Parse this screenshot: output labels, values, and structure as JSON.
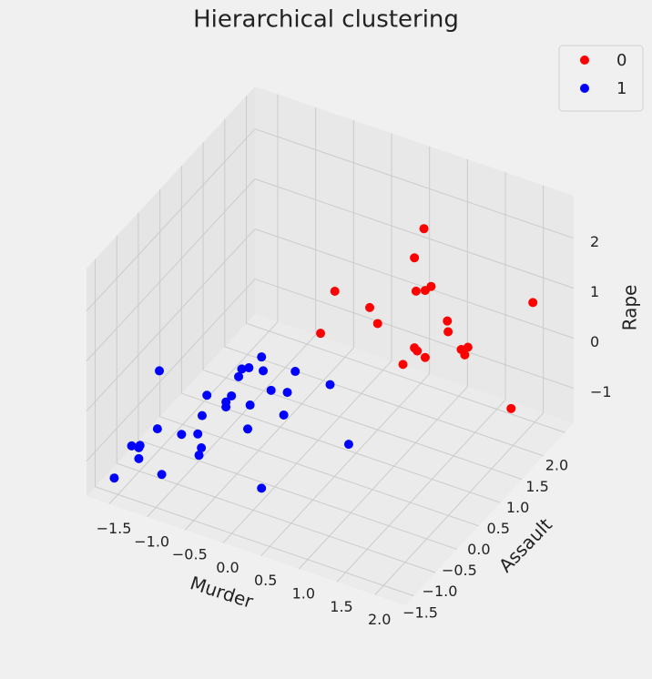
{
  "chart_data": {
    "type": "scatter3d",
    "title": "Hierarchical clustering",
    "xlabel": "Murder",
    "ylabel": "Assault",
    "zlabel": "Rape",
    "xlim": [
      -1.8,
      2.4
    ],
    "ylim": [
      -1.7,
      2.2
    ],
    "zlim": [
      -1.7,
      2.85
    ],
    "xticks": [
      {
        "value": -1.5,
        "label": "−1.5"
      },
      {
        "value": -1.0,
        "label": "−1.0"
      },
      {
        "value": -0.5,
        "label": "−0.5"
      },
      {
        "value": 0.0,
        "label": "0.0"
      },
      {
        "value": 0.5,
        "label": "0.5"
      },
      {
        "value": 1.0,
        "label": "1.0"
      },
      {
        "value": 1.5,
        "label": "1.5"
      },
      {
        "value": 2.0,
        "label": "2.0"
      }
    ],
    "yticks": [
      {
        "value": -1.5,
        "label": "−1.5"
      },
      {
        "value": -1.0,
        "label": "−1.0"
      },
      {
        "value": -0.5,
        "label": "−0.5"
      },
      {
        "value": 0.0,
        "label": "0.0"
      },
      {
        "value": 0.5,
        "label": "0.5"
      },
      {
        "value": 1.0,
        "label": "1.0"
      },
      {
        "value": 1.5,
        "label": "1.5"
      },
      {
        "value": 2.0,
        "label": "2.0"
      }
    ],
    "zticks": [
      {
        "value": -1,
        "label": "−1"
      },
      0,
      1,
      2
    ],
    "grid": true,
    "legend": "upper right",
    "series": [
      {
        "name": "0",
        "color": "red",
        "x": [
          1.11,
          1.03,
          0.34,
          1.04,
          1.12,
          1.17,
          0.64,
          0.71,
          0.22,
          2.05,
          1.31,
          1.32,
          1.03,
          1.05,
          1.49,
          1.43,
          1.46,
          1.12,
          0.93,
          1.86
        ],
        "y": [
          1.0,
          0.92,
          0.29,
          0.94,
          1.01,
          1.06,
          0.57,
          0.63,
          0.17,
          1.87,
          1.19,
          1.19,
          0.92,
          0.95,
          1.35,
          1.3,
          1.33,
          1.01,
          0.83,
          1.7
        ],
        "z": [
          2.64,
          2.09,
          1.65,
          1.41,
          1.4,
          1.46,
          1.22,
          0.88,
          0.86,
          0.84,
          0.72,
          0.51,
          0.29,
          0.21,
          0.14,
          0.11,
          -0.01,
          0.06,
          -0.01,
          -1.22
        ]
      },
      {
        "name": "1",
        "color": "blue",
        "x": [
          -0.29,
          -1.17,
          -0.28,
          -0.4,
          -0.46,
          -0.49,
          0.0,
          0.3,
          -0.21,
          -0.07,
          -0.76,
          -0.55,
          -0.6,
          -0.6,
          -0.8,
          -0.39,
          -0.1,
          -0.41,
          -1.19,
          -0.98,
          -0.84,
          -0.81,
          -0.83,
          -1.41,
          -1.34,
          -1.35,
          -1.35,
          -1.15,
          -1.56,
          -0.08,
          0.46
        ],
        "y": [
          -0.3,
          -1.12,
          -0.28,
          -0.4,
          -0.46,
          -0.48,
          -0.03,
          0.25,
          -0.22,
          -0.09,
          -0.74,
          -0.54,
          -0.58,
          -0.58,
          -0.78,
          -0.39,
          -0.12,
          -0.41,
          -1.13,
          -0.94,
          -0.81,
          -0.78,
          -0.8,
          -1.34,
          -1.27,
          -1.28,
          -1.28,
          -1.1,
          -1.48,
          -0.67,
          0.4
        ],
        "z": [
          0.56,
          0.59,
          0.27,
          0.38,
          0.38,
          0.23,
          0.17,
          -0.2,
          -0.14,
          -0.23,
          -0.04,
          -0.13,
          -0.24,
          -0.34,
          -0.43,
          -0.37,
          -0.67,
          -0.84,
          -0.57,
          -0.75,
          -0.79,
          -1.08,
          -1.22,
          -0.83,
          -0.85,
          -0.89,
          -1.11,
          -1.49,
          -1.42,
          -1.61,
          -1.45
        ]
      }
    ]
  }
}
